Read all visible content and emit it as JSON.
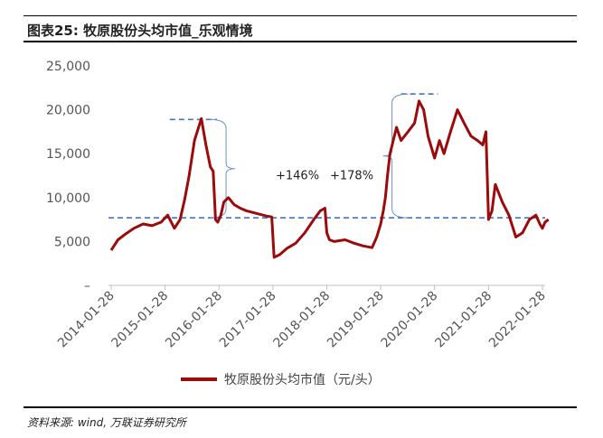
{
  "figure": {
    "title": "图表25: 牧原股份头均市值_乐观情境",
    "source": "资料来源: wind, 万联证券研究所"
  },
  "chart_data": {
    "type": "line",
    "title": "图表25: 牧原股份头均市值_乐观情境",
    "xlabel": "",
    "ylabel": "",
    "ylim": [
      0,
      25000
    ],
    "yticks": [
      "–",
      "5,000",
      "10,000",
      "15,000",
      "20,000",
      "25,000"
    ],
    "ytick_values": [
      0,
      5000,
      10000,
      15000,
      20000,
      25000
    ],
    "xticks": [
      "2014-01-28",
      "2015-01-28",
      "2016-01-28",
      "2017-01-28",
      "2018-01-28",
      "2019-01-28",
      "2020-01-28",
      "2021-01-28",
      "2022-01-28"
    ],
    "grid": false,
    "legend": "bottom",
    "series": [
      {
        "name": "牧原股份头均市值（元/头）",
        "color": "#9b0b0b",
        "x": [
          "2014-01-28",
          "2014-03-15",
          "2014-05-01",
          "2014-07-01",
          "2014-09-01",
          "2014-11-01",
          "2015-01-01",
          "2015-02-15",
          "2015-04-01",
          "2015-05-10",
          "2015-06-10",
          "2015-07-10",
          "2015-08-15",
          "2015-10-01",
          "2015-11-01",
          "2015-12-01",
          "2015-12-20",
          "2016-01-05",
          "2016-01-20",
          "2016-02-10",
          "2016-03-01",
          "2016-04-01",
          "2016-05-10",
          "2016-06-20",
          "2016-08-01",
          "2016-09-15",
          "2016-11-01",
          "2016-12-15",
          "2017-01-20",
          "2017-02-05",
          "2017-03-15",
          "2017-05-01",
          "2017-07-01",
          "2017-09-01",
          "2017-11-01",
          "2017-12-15",
          "2018-01-15",
          "2018-01-28",
          "2018-02-15",
          "2018-03-20",
          "2018-06-01",
          "2018-08-01",
          "2018-10-01",
          "2018-12-01",
          "2019-01-01",
          "2019-01-28",
          "2019-02-15",
          "2019-03-01",
          "2019-03-15",
          "2019-04-01",
          "2019-05-15",
          "2019-06-15",
          "2019-08-01",
          "2019-09-15",
          "2019-10-15",
          "2019-11-15",
          "2019-12-15",
          "2020-01-28",
          "2020-03-01",
          "2020-04-01",
          "2020-05-15",
          "2020-07-01",
          "2020-08-15",
          "2020-10-01",
          "2020-11-15",
          "2020-12-20",
          "2021-01-10",
          "2021-01-28",
          "2021-02-20",
          "2021-03-15",
          "2021-05-01",
          "2021-06-15",
          "2021-08-01",
          "2021-09-15",
          "2021-11-01",
          "2021-12-15",
          "2022-01-10",
          "2022-01-28",
          "2022-02-15",
          "2022-03-10"
        ],
        "y": [
          4000,
          5200,
          5800,
          6500,
          7000,
          6800,
          7200,
          8000,
          6500,
          7500,
          9800,
          12500,
          16500,
          19000,
          16000,
          13500,
          13000,
          7500,
          7200,
          8000,
          9500,
          10000,
          9200,
          8800,
          8500,
          8300,
          8100,
          7900,
          7800,
          3200,
          3500,
          4200,
          4800,
          6000,
          7500,
          8500,
          8800,
          6000,
          5200,
          5000,
          5200,
          4800,
          4500,
          4300,
          5500,
          7000,
          8500,
          10000,
          12500,
          15000,
          18000,
          16500,
          17500,
          18500,
          21000,
          20000,
          17000,
          14500,
          16500,
          15000,
          17500,
          20000,
          18500,
          17000,
          16500,
          16000,
          17500,
          7500,
          8500,
          11500,
          9500,
          8000,
          5500,
          6000,
          7500,
          8000,
          7000,
          6500,
          7200,
          7500
        ]
      }
    ],
    "reference_line": {
      "value": 7700,
      "style": "dashed",
      "color": "#4472c4"
    },
    "peak_lines": [
      {
        "x_start": "2015-03-01",
        "x_end": "2016-01-15",
        "value": 18900
      },
      {
        "x_start": "2019-06-15",
        "x_end": "2020-02-20",
        "value": 21800
      }
    ],
    "annotations": [
      "+146%",
      "+178%"
    ]
  }
}
